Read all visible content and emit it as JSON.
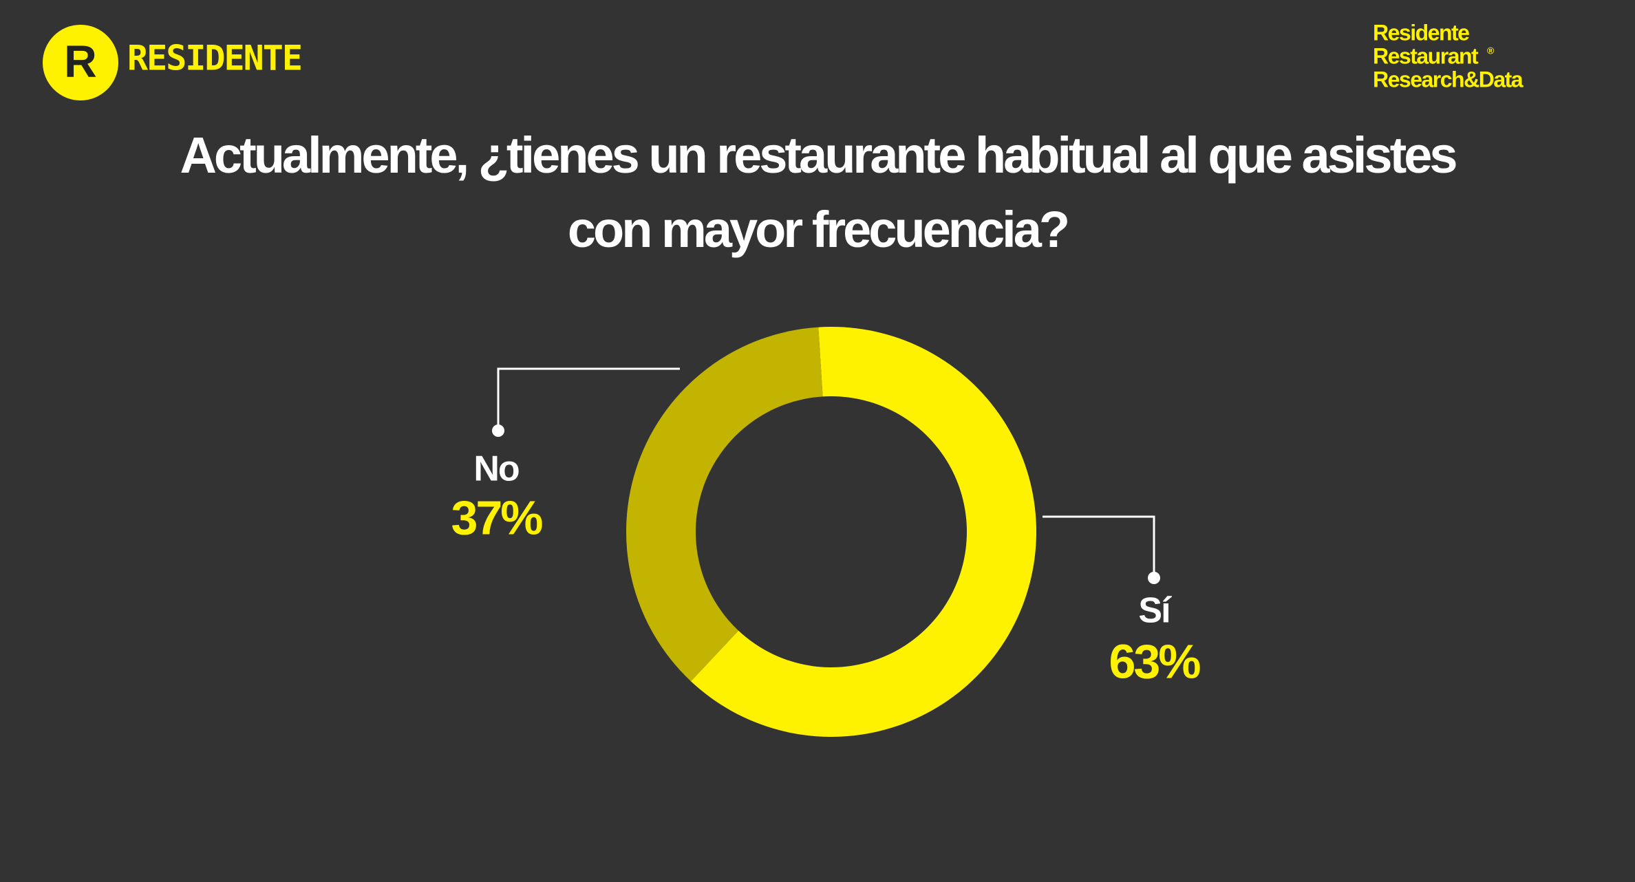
{
  "header": {
    "logo_letter": "R",
    "logo_text": "RESIDENTE",
    "brand_lines": [
      "Residente",
      "Restaurant",
      "Research&Data"
    ],
    "brand_mark": "®"
  },
  "chart_data": {
    "type": "pie",
    "title": "Actualmente, ¿tienes un restaurante habitual al que asistes con mayor frecuencia?",
    "categories": [
      "Sí",
      "No"
    ],
    "values": [
      63,
      37
    ],
    "value_labels": [
      "63%",
      "37%"
    ],
    "colors": [
      "#fff200",
      "#c2b400"
    ]
  }
}
